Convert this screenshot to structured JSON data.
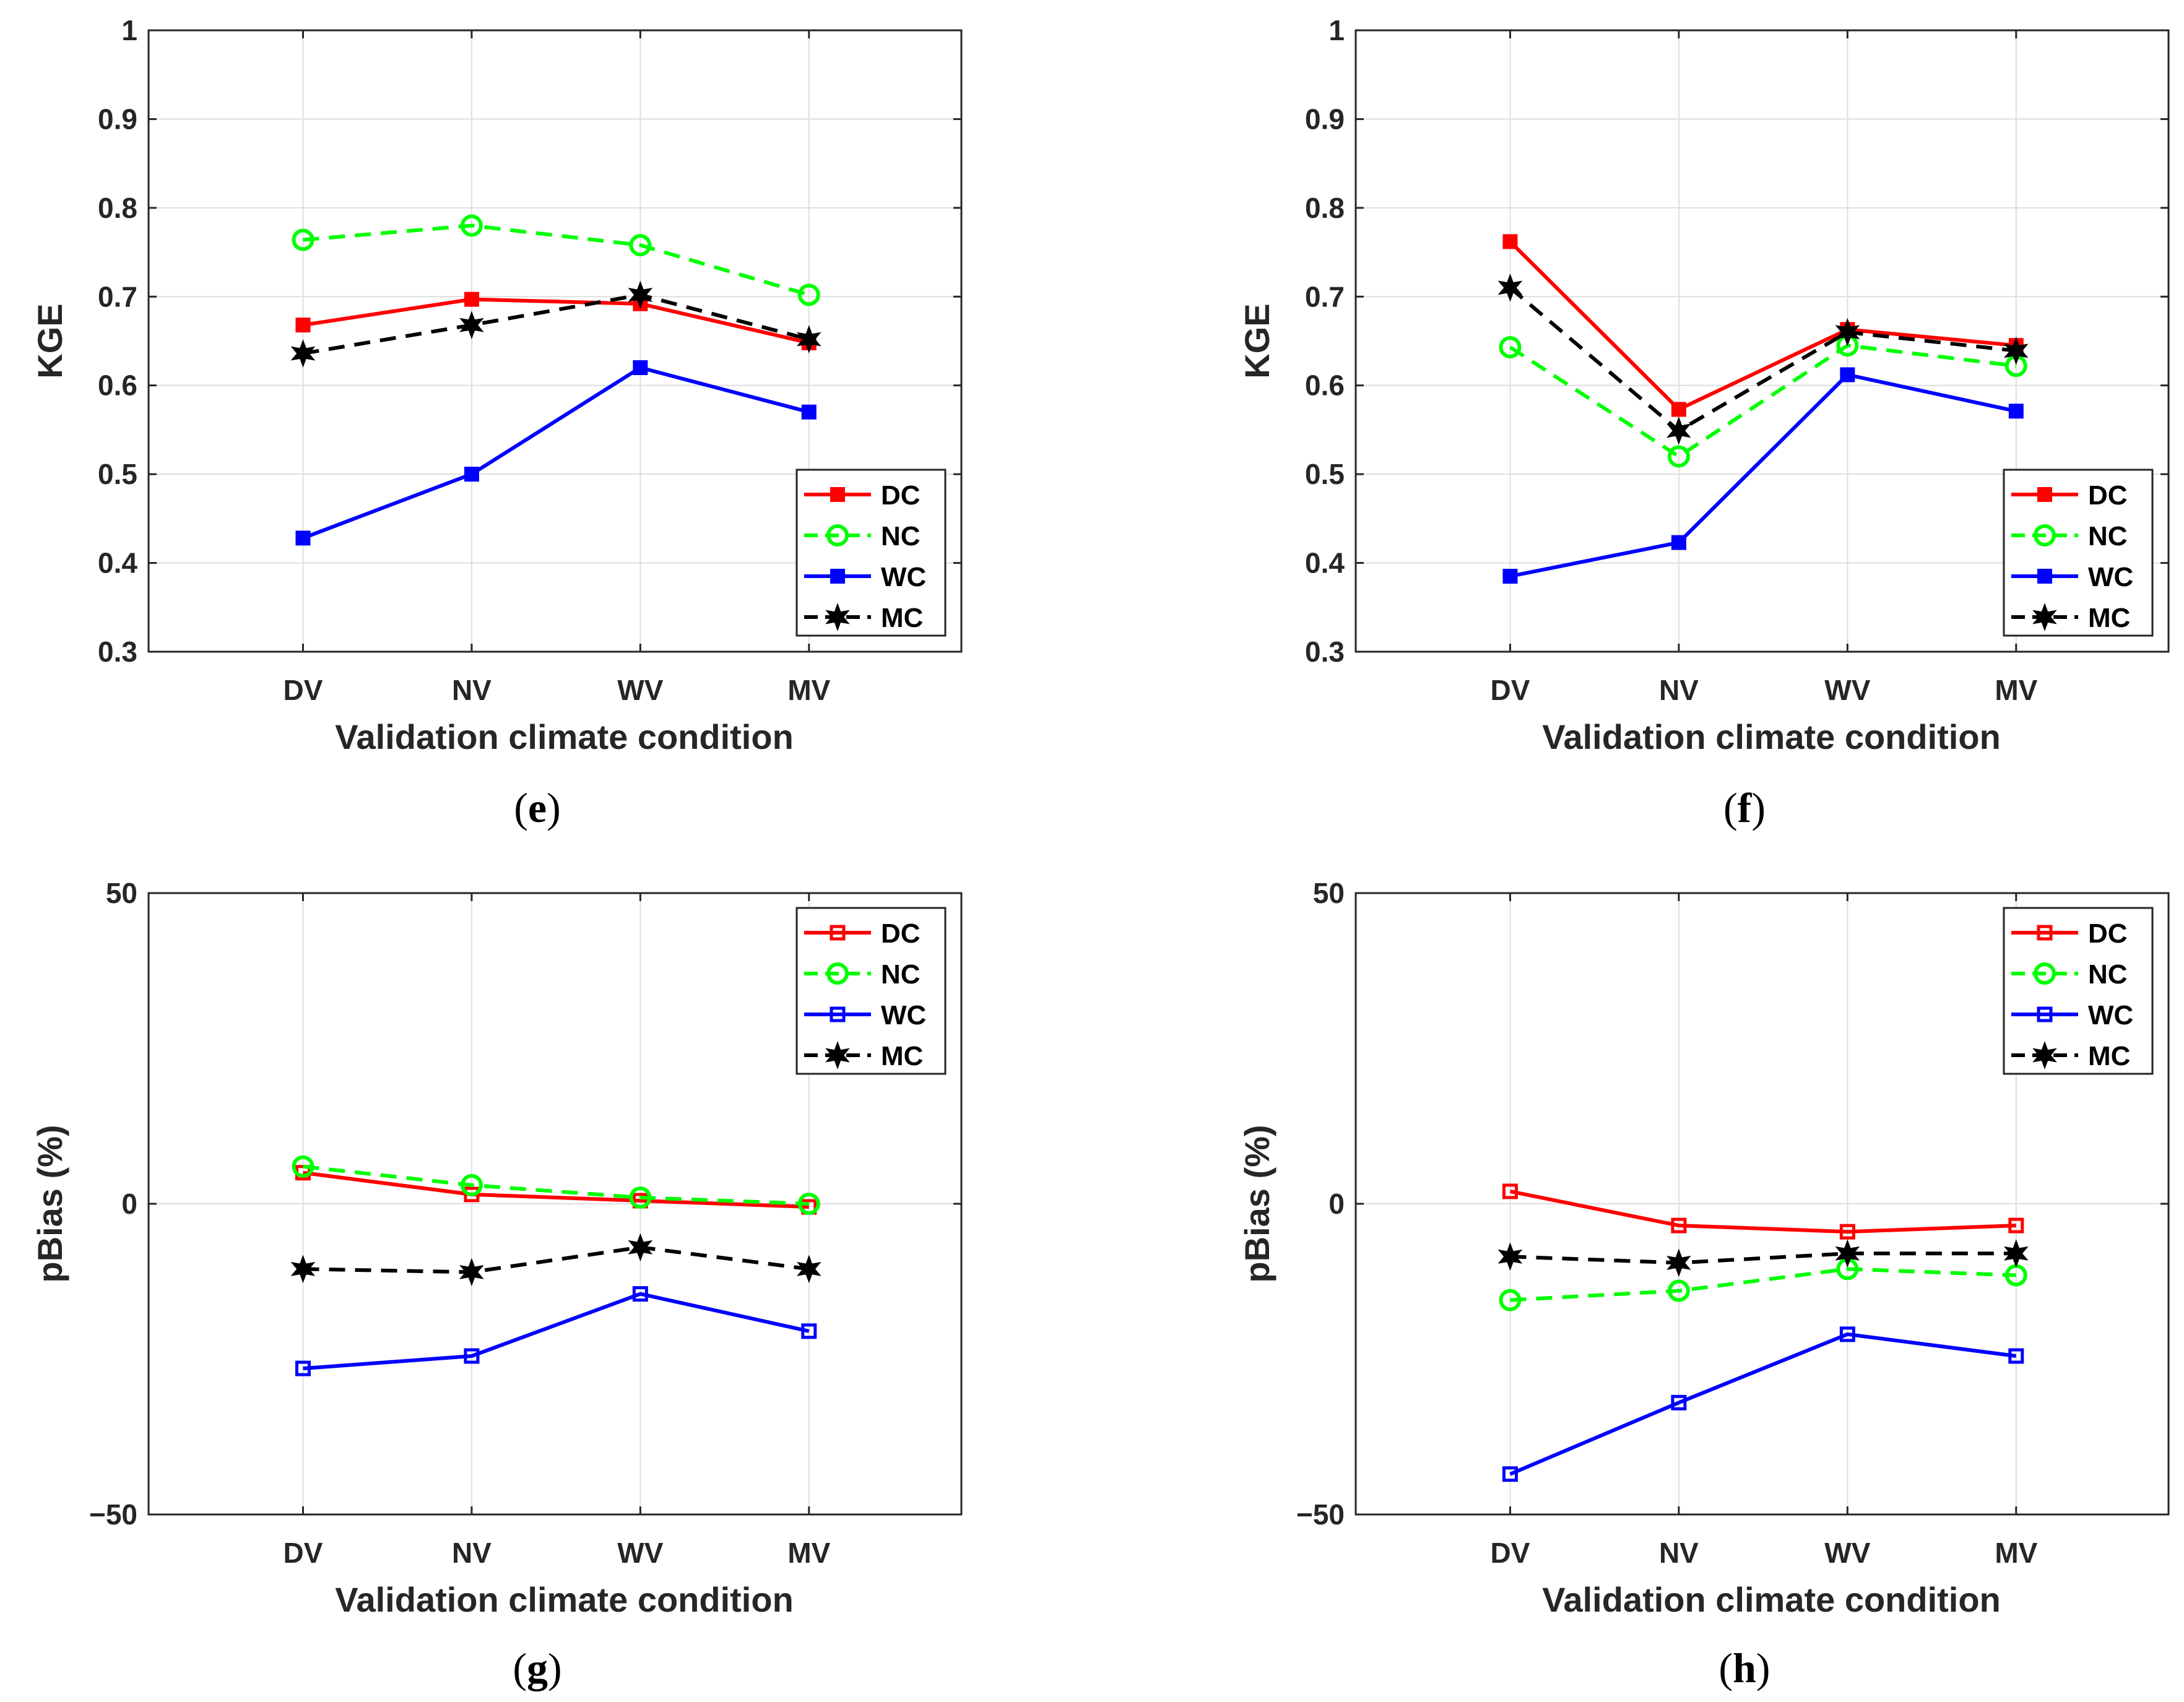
{
  "chart_data": [
    {
      "id": "e",
      "type": "line",
      "caption_letter": "e",
      "categories": [
        "DV",
        "NV",
        "WV",
        "MV"
      ],
      "xlabel": "Validation climate condition",
      "ylabel": "KGE",
      "ylim": [
        0.3,
        1
      ],
      "yticks": [
        0.3,
        0.4,
        0.5,
        0.6,
        0.7,
        0.8,
        0.9,
        1
      ],
      "ytick_labels": [
        "0.3",
        "0.4",
        "0.5",
        "0.6",
        "0.7",
        "0.8",
        "0.9",
        "1"
      ],
      "grid": true,
      "legend_position": "bottom-right",
      "series": [
        {
          "name": "DC",
          "color": "#ff0000",
          "dash": "solid",
          "marker": "square-filled",
          "values": [
            0.668,
            0.697,
            0.692,
            0.648
          ]
        },
        {
          "name": "NC",
          "color": "#00ff00",
          "dash": "dashed",
          "marker": "circle",
          "values": [
            0.764,
            0.78,
            0.758,
            0.702
          ]
        },
        {
          "name": "WC",
          "color": "#0000ff",
          "dash": "solid",
          "marker": "square-filled",
          "values": [
            0.428,
            0.5,
            0.62,
            0.57
          ]
        },
        {
          "name": "MC",
          "color": "#000000",
          "dash": "dashed",
          "marker": "star",
          "values": [
            0.636,
            0.668,
            0.702,
            0.652
          ]
        }
      ]
    },
    {
      "id": "f",
      "type": "line",
      "caption_letter": "f",
      "categories": [
        "DV",
        "NV",
        "WV",
        "MV"
      ],
      "xlabel": "Validation climate condition",
      "ylabel": "KGE",
      "ylim": [
        0.3,
        1
      ],
      "yticks": [
        0.3,
        0.4,
        0.5,
        0.6,
        0.7,
        0.8,
        0.9,
        1
      ],
      "ytick_labels": [
        "0.3",
        "0.4",
        "0.5",
        "0.6",
        "0.7",
        "0.8",
        "0.9",
        "1"
      ],
      "grid": true,
      "legend_position": "bottom-right",
      "series": [
        {
          "name": "DC",
          "color": "#ff0000",
          "dash": "solid",
          "marker": "square-filled",
          "values": [
            0.762,
            0.573,
            0.663,
            0.645
          ]
        },
        {
          "name": "NC",
          "color": "#00ff00",
          "dash": "dashed",
          "marker": "circle",
          "values": [
            0.643,
            0.52,
            0.645,
            0.622
          ]
        },
        {
          "name": "WC",
          "color": "#0000ff",
          "dash": "solid",
          "marker": "square-filled",
          "values": [
            0.385,
            0.423,
            0.612,
            0.571
          ]
        },
        {
          "name": "MC",
          "color": "#000000",
          "dash": "dashed",
          "marker": "star",
          "values": [
            0.71,
            0.549,
            0.66,
            0.639
          ]
        }
      ]
    },
    {
      "id": "g",
      "type": "line",
      "caption_letter": "g",
      "categories": [
        "DV",
        "NV",
        "WV",
        "MV"
      ],
      "xlabel": "Validation climate condition",
      "ylabel": "pBias (%)",
      "ylim": [
        -50,
        50
      ],
      "yticks": [
        -50,
        0,
        50
      ],
      "ytick_labels": [
        "−50",
        "0",
        "50"
      ],
      "grid": true,
      "legend_position": "top-right",
      "series": [
        {
          "name": "DC",
          "color": "#ff0000",
          "dash": "solid",
          "marker": "square",
          "values": [
            5.0,
            1.5,
            0.5,
            -0.5
          ]
        },
        {
          "name": "NC",
          "color": "#00ff00",
          "dash": "dashed",
          "marker": "circle",
          "values": [
            6.0,
            3.0,
            1.0,
            0.0
          ]
        },
        {
          "name": "WC",
          "color": "#0000ff",
          "dash": "solid",
          "marker": "square",
          "values": [
            -26.5,
            -24.5,
            -14.5,
            -20.5
          ]
        },
        {
          "name": "MC",
          "color": "#000000",
          "dash": "dashed",
          "marker": "star",
          "values": [
            -10.5,
            -11.0,
            -7.0,
            -10.5
          ]
        }
      ]
    },
    {
      "id": "h",
      "type": "line",
      "caption_letter": "h",
      "categories": [
        "DV",
        "NV",
        "WV",
        "MV"
      ],
      "xlabel": "Validation climate condition",
      "ylabel": "pBias (%)",
      "ylim": [
        -50,
        50
      ],
      "yticks": [
        -50,
        0,
        50
      ],
      "ytick_labels": [
        "−50",
        "0",
        "50"
      ],
      "grid": true,
      "legend_position": "top-right",
      "series": [
        {
          "name": "DC",
          "color": "#ff0000",
          "dash": "solid",
          "marker": "square",
          "values": [
            2.0,
            -3.5,
            -4.5,
            -3.5
          ]
        },
        {
          "name": "NC",
          "color": "#00ff00",
          "dash": "dashed",
          "marker": "circle",
          "values": [
            -15.5,
            -14.0,
            -10.5,
            -11.5
          ]
        },
        {
          "name": "WC",
          "color": "#0000ff",
          "dash": "solid",
          "marker": "square",
          "values": [
            -43.5,
            -32.0,
            -21.0,
            -24.5
          ]
        },
        {
          "name": "MC",
          "color": "#000000",
          "dash": "dashed",
          "marker": "star",
          "values": [
            -8.5,
            -9.5,
            -8.0,
            -8.0
          ]
        }
      ]
    }
  ]
}
